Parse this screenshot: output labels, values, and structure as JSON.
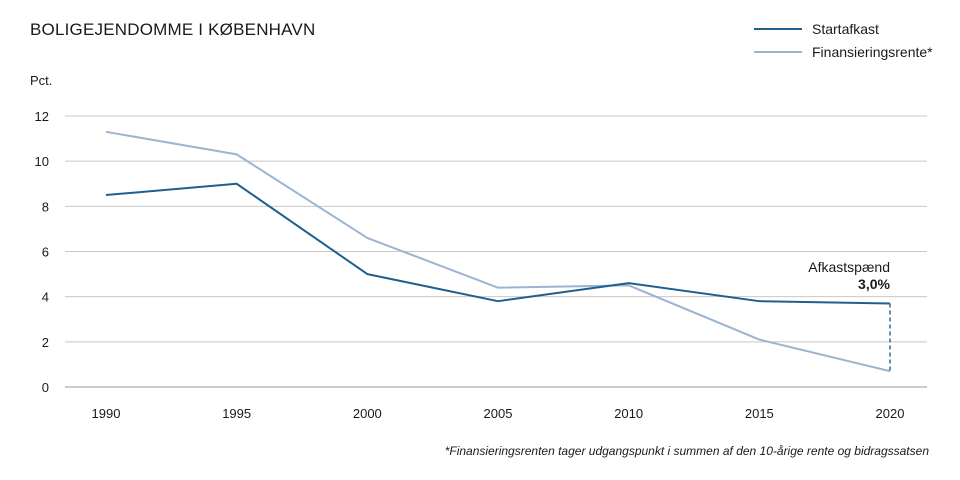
{
  "chart_data": {
    "type": "line",
    "title": "BOLIGEJENDOMME I KØBENHAVN",
    "ylabel": "Pct.",
    "xlabel": "",
    "x": [
      1990,
      1995,
      2000,
      2005,
      2010,
      2015,
      2020
    ],
    "xticks": [
      "1990",
      "1995",
      "2000",
      "2005",
      "2010",
      "2015",
      "2020"
    ],
    "yticks": [
      "0",
      "2",
      "4",
      "6",
      "8",
      "10",
      "12"
    ],
    "ylim": [
      0,
      12
    ],
    "grid": true,
    "legend_position": "top-right",
    "series": [
      {
        "name": "Startafkast",
        "color": "#1f5f8f",
        "values": [
          8.5,
          9.0,
          5.0,
          3.8,
          4.6,
          3.8,
          3.7
        ]
      },
      {
        "name": "Finansieringsrente*",
        "color": "#9ab4d1",
        "values": [
          11.3,
          10.3,
          6.6,
          4.4,
          4.5,
          2.1,
          0.7
        ]
      }
    ],
    "annotation": {
      "label": "Afkastspænd",
      "value": "3,0%",
      "x": 2020,
      "from": 0.7,
      "to": 3.7
    },
    "footnote": "*Finansieringsrenten tager udgangspunkt i summen af den 10-årige rente og bidragssatsen"
  }
}
